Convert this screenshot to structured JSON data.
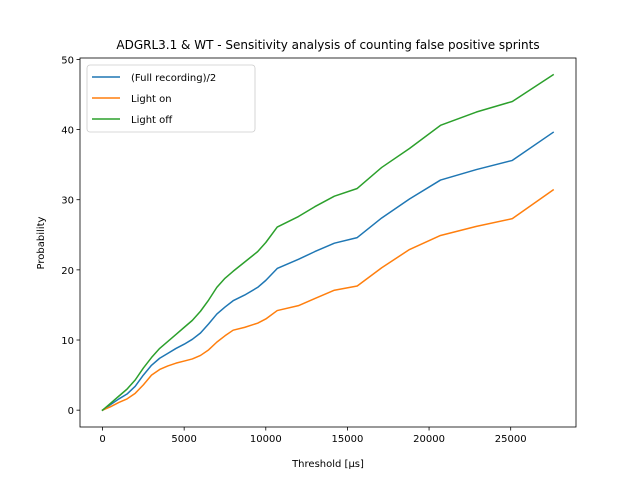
{
  "chart_data": {
    "type": "line",
    "title": "ADGRL3.1 & WT - Sensitivity analysis of counting false positive sprints",
    "xlabel": "Threshold [μs]",
    "ylabel": "Probability",
    "xlim": [
      -1380,
      29000
    ],
    "ylim": [
      -2.4,
      50.2
    ],
    "xticks": [
      0,
      5000,
      10000,
      15000,
      20000,
      25000
    ],
    "xtick_labels": [
      "0",
      "5000",
      "10000",
      "15000",
      "20000",
      "25000"
    ],
    "yticks": [
      0,
      10,
      20,
      30,
      40,
      50
    ],
    "ytick_labels": [
      "0",
      "10",
      "20",
      "30",
      "40",
      "50"
    ],
    "grid": false,
    "legend_position": "upper-left",
    "x": [
      0,
      500,
      1000,
      1500,
      2000,
      2500,
      3000,
      3500,
      4000,
      4500,
      5000,
      5500,
      6000,
      6500,
      7000,
      7500,
      8000,
      8700,
      9500,
      10000,
      10700,
      12000,
      13000,
      14200,
      15600,
      17100,
      18800,
      20700,
      22900,
      25100,
      27600
    ],
    "series": [
      {
        "name": "(Full recording)/2",
        "color": "#1f77b4",
        "values": [
          0,
          0.8,
          1.6,
          2.3,
          3.4,
          5.0,
          6.4,
          7.4,
          8.1,
          8.8,
          9.4,
          10.1,
          11.0,
          12.3,
          13.7,
          14.7,
          15.6,
          16.4,
          17.5,
          18.5,
          20.2,
          21.5,
          22.6,
          23.8,
          24.6,
          27.4,
          30.1,
          32.8,
          34.3,
          35.6,
          39.6
        ]
      },
      {
        "name": "Light on",
        "color": "#ff7f0e",
        "values": [
          0,
          0.5,
          1.1,
          1.6,
          2.4,
          3.6,
          5.0,
          5.8,
          6.3,
          6.7,
          7.0,
          7.3,
          7.8,
          8.6,
          9.7,
          10.6,
          11.4,
          11.8,
          12.4,
          13.0,
          14.2,
          14.9,
          15.9,
          17.1,
          17.7,
          20.3,
          22.9,
          24.9,
          26.2,
          27.3,
          31.4
        ]
      },
      {
        "name": "Light off",
        "color": "#2ca02c",
        "values": [
          0,
          1.0,
          2.0,
          3.0,
          4.3,
          6.0,
          7.5,
          8.8,
          9.8,
          10.8,
          11.8,
          12.8,
          14.1,
          15.7,
          17.5,
          18.8,
          19.8,
          21.1,
          22.6,
          23.9,
          26.1,
          27.6,
          29.0,
          30.5,
          31.6,
          34.6,
          37.3,
          40.6,
          42.5,
          44.0,
          47.8
        ]
      }
    ]
  }
}
